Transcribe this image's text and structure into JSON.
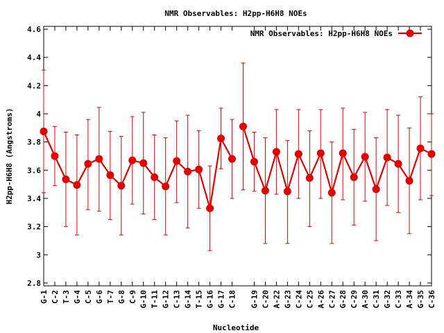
{
  "chart_data": {
    "type": "line",
    "title": "NMR Observables: H2pp-H6H8 NOEs",
    "xlabel": "Nucleotide",
    "ylabel": "H2pp-H6H8 (Angstroms)",
    "ylim": [
      2.78,
      4.62
    ],
    "y_ticks": [
      "2.8",
      "3",
      "3.2",
      "3.4",
      "3.6",
      "3.8",
      "4",
      "4.2",
      "4.4",
      "4.6"
    ],
    "grid": false,
    "legend_position": "top-right",
    "color": "#e00000",
    "x_ticks": [
      "G-1",
      "C-2",
      "T-3",
      "G-4",
      "C-5",
      "G-6",
      "T-7",
      "G-8",
      "C-9",
      "G-10",
      "T-11",
      "G-12",
      "C-13",
      "G-14",
      "T-15",
      "G-16",
      "G-17",
      "C-18",
      "G-19",
      "C-20",
      "A-22",
      "G-23",
      "C-24",
      "C-25",
      "A-26",
      "C-27",
      "G-28",
      "C-29",
      "A-30",
      "C-31",
      "G-32",
      "C-33",
      "A-34",
      "G-35",
      "C-36"
    ],
    "series": [
      {
        "name": "NMR Observables: H2pp-H6H8 NOEs",
        "segments": [
          {
            "x": [
              1,
              2,
              3,
              4,
              5,
              6,
              7,
              8,
              9,
              10,
              11,
              12,
              13,
              14,
              15,
              16,
              17,
              18
            ],
            "y": [
              3.875,
              3.7,
              3.535,
              3.495,
              3.645,
              3.68,
              3.565,
              3.49,
              3.67,
              3.65,
              3.55,
              3.485,
              3.665,
              3.59,
              3.605,
              3.33,
              3.825,
              3.68
            ],
            "err_low": [
              3.44,
              3.49,
              3.2,
              3.14,
              3.32,
              3.31,
              3.25,
              3.14,
              3.36,
              3.29,
              3.25,
              3.14,
              3.37,
              3.19,
              3.33,
              3.03,
              3.61,
              3.4
            ],
            "err_high": [
              4.31,
              3.91,
              3.87,
              3.85,
              3.96,
              4.045,
              3.875,
              3.84,
              3.98,
              4.01,
              3.85,
              3.83,
              3.95,
              3.99,
              3.88,
              3.63,
              4.04,
              3.96
            ]
          },
          {
            "x": [
              19,
              20,
              21,
              22,
              23,
              24,
              25,
              26,
              27,
              28,
              29,
              30,
              31,
              32,
              33,
              34,
              35,
              36
            ],
            "y": [
              3.91,
              3.66,
              3.455,
              3.73,
              3.45,
              3.715,
              3.545,
              3.72,
              3.44,
              3.72,
              3.55,
              3.695,
              3.465,
              3.69,
              3.645,
              3.525,
              3.755,
              3.715
            ],
            "err_low": [
              3.46,
              3.45,
              3.08,
              3.43,
              3.08,
              3.4,
              3.2,
              3.4,
              3.08,
              3.39,
              3.21,
              3.38,
              3.1,
              3.35,
              3.3,
              3.15,
              3.39,
              3.42
            ],
            "err_high": [
              4.36,
              3.87,
              3.83,
              4.03,
              3.81,
              4.03,
              3.88,
              4.03,
              3.8,
              4.04,
              3.89,
              4.01,
              3.83,
              4.03,
              3.99,
              3.9,
              4.12,
              4.0
            ]
          }
        ]
      }
    ]
  }
}
